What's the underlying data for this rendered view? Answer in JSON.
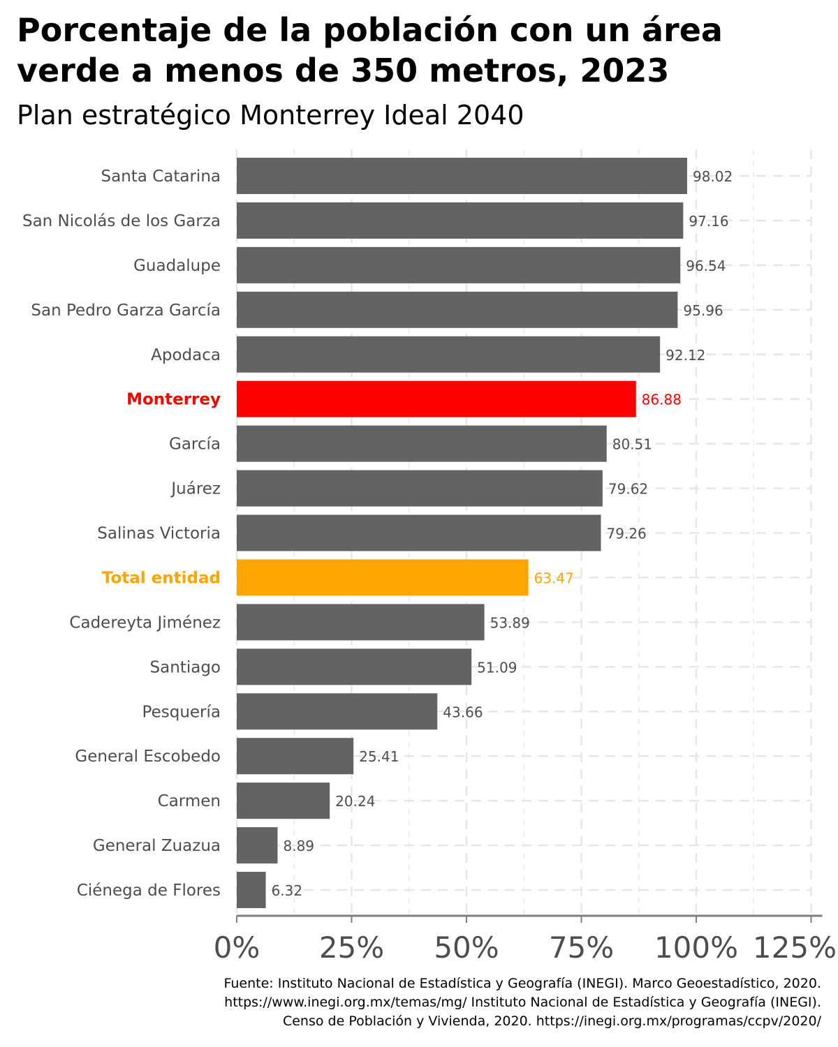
{
  "title_line1": "Porcentaje de la población con un área",
  "title_line2": "verde a menos de 350 metros, 2023",
  "subtitle": "Plan estratégico Monterrey Ideal 2040",
  "caption_lines": [
    "Fuente: Instituto Nacional de Estadística y Geografía (INEGI). Marco Geoestadístico, 2020.",
    "https://www.inegi.org.mx/temas/mg/ Instituto Nacional de Estadística y Geografía (INEGI).",
    "Censo de Población y Vivienda, 2020. https://inegi.org.mx/programas/ccpv/2020/"
  ],
  "colors": {
    "default_bar": "#636363",
    "highlight": "#ff0000",
    "total": "#ffa500",
    "grid": "#e6e6e6",
    "axis": "#7f7f7f",
    "tick_label": "#4d4d4d"
  },
  "chart_data": {
    "type": "bar",
    "orientation": "horizontal",
    "categories": [
      "Santa Catarina",
      "San Nicolás de los Garza",
      "Guadalupe",
      "San Pedro Garza García",
      "Apodaca",
      "Monterrey",
      "García",
      "Juárez",
      "Salinas Victoria",
      "Total entidad",
      "Cadereyta Jiménez",
      "Santiago",
      "Pesquería",
      "General Escobedo",
      "Carmen",
      "General Zuazua",
      "Ciénega de Flores"
    ],
    "values": [
      98.02,
      97.16,
      96.54,
      95.96,
      92.12,
      86.88,
      80.51,
      79.62,
      79.26,
      63.47,
      53.89,
      51.09,
      43.66,
      25.41,
      20.24,
      8.89,
      6.32
    ],
    "value_labels": [
      "98.02",
      "97.16",
      "96.54",
      "95.96",
      "92.12",
      "86.88",
      "80.51",
      "79.62",
      "79.26",
      "63.47",
      "53.89",
      "51.09",
      "43.66",
      "25.41",
      "20.24",
      "8.89",
      "6.32"
    ],
    "highlight": {
      "Monterrey": "#ff0000",
      "Total entidad": "#ffa500"
    },
    "xlim": [
      0,
      125
    ],
    "xticks": [
      0,
      25,
      50,
      75,
      100,
      125
    ],
    "xtick_labels": [
      "0%",
      "25%",
      "50%",
      "75%",
      "100%",
      "125%"
    ],
    "grid": true,
    "legend": "none"
  }
}
